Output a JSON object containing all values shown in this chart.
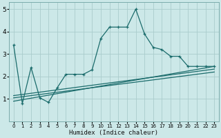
{
  "xlabel": "Humidex (Indice chaleur)",
  "bg_color": "#cce8e8",
  "grid_color": "#aacccc",
  "line_color": "#1a6b6b",
  "xlim": [
    -0.5,
    23.5
  ],
  "ylim": [
    0,
    5.3
  ],
  "xticks": [
    0,
    1,
    2,
    3,
    4,
    5,
    6,
    7,
    8,
    9,
    10,
    11,
    12,
    13,
    14,
    15,
    16,
    17,
    18,
    19,
    20,
    21,
    22,
    23
  ],
  "yticks": [
    1,
    2,
    3,
    4,
    5
  ],
  "main_series_x": [
    0,
    1,
    2,
    3,
    4,
    5,
    6,
    7,
    8,
    9,
    10,
    11,
    12,
    13,
    14,
    15,
    16,
    17,
    18,
    19,
    20,
    21,
    22,
    23
  ],
  "main_series_y": [
    3.4,
    0.8,
    2.4,
    1.05,
    0.85,
    1.5,
    2.1,
    2.1,
    2.1,
    2.3,
    3.7,
    4.2,
    4.2,
    4.2,
    5.0,
    3.9,
    3.3,
    3.2,
    2.9,
    2.9,
    2.45,
    2.45,
    2.45,
    2.45
  ],
  "line1_x": [
    0,
    23
  ],
  "line1_y": [
    0.9,
    2.45
  ],
  "line2_x": [
    0,
    23
  ],
  "line2_y": [
    1.05,
    2.2
  ],
  "line3_x": [
    0,
    23
  ],
  "line3_y": [
    1.15,
    2.33
  ]
}
